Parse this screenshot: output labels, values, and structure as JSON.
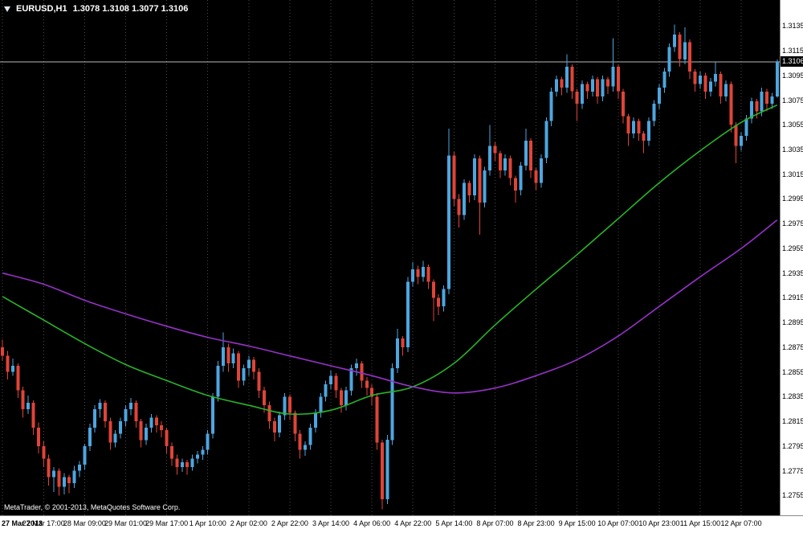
{
  "header": {
    "symbol": "EURUSD,H1",
    "ohlc": "1.3078 1.3108 1.3077 1.3106"
  },
  "footer": {
    "copyright": "MetaTrader, © 2001-2013, MetaQuotes Software Corp."
  },
  "colors": {
    "background": "#000000",
    "bull": "#4da6e0",
    "bear": "#e04438",
    "grid": "#4a4a4a",
    "last_price_line": "#b9b9b9",
    "axis_bg": "#ffffff",
    "axis_text": "#000000",
    "header_text": "#ffffff"
  },
  "chart_data": {
    "type": "candlestick",
    "title": "EURUSD,H1",
    "symbol": "EURUSD",
    "timeframe": "H1",
    "current_bar": {
      "open": 1.3078,
      "high": 1.3108,
      "low": 1.3077,
      "close": 1.3106
    },
    "last_price": 1.3106,
    "last_price_label": "1.3106",
    "y_min": 1.2739,
    "y_max": 1.3156,
    "grid": "vertical-dotted",
    "y_ticks": [
      "1.3135",
      "1.3115",
      "1.3095",
      "1.3075",
      "1.3055",
      "1.3035",
      "1.3015",
      "1.2995",
      "1.2975",
      "1.2955",
      "1.2935",
      "1.2915",
      "1.2895",
      "1.2875",
      "1.2855",
      "1.2835",
      "1.2815",
      "1.2795",
      "1.2775",
      "1.2755"
    ],
    "x_ticks": [
      [
        0,
        "27 Mar 2013"
      ],
      [
        8,
        "27 Mar 17:00"
      ],
      [
        16,
        "28 Mar 09:00"
      ],
      [
        24,
        "29 Mar 01:00"
      ],
      [
        32,
        "29 Mar 17:00"
      ],
      [
        40,
        "1 Apr 10:00"
      ],
      [
        48,
        "2 Apr 02:00"
      ],
      [
        56,
        "2 Apr 22:00"
      ],
      [
        64,
        "3 Apr 14:00"
      ],
      [
        72,
        "4 Apr 06:00"
      ],
      [
        80,
        "4 Apr 22:00"
      ],
      [
        88,
        "5 Apr 14:00"
      ],
      [
        96,
        "8 Apr 07:00"
      ],
      [
        104,
        "8 Apr 23:00"
      ],
      [
        112,
        "9 Apr 15:00"
      ],
      [
        120,
        "10 Apr 07:00"
      ],
      [
        128,
        "10 Apr 23:00"
      ],
      [
        136,
        "11 Apr 15:00"
      ],
      [
        144,
        "12 Apr 07:00"
      ]
    ],
    "candles": [
      [
        1.2875,
        1.2881,
        1.2864,
        1.2868
      ],
      [
        1.2868,
        1.2872,
        1.2849,
        1.2855
      ],
      [
        1.2855,
        1.2866,
        1.2852,
        1.286
      ],
      [
        1.286,
        1.2862,
        1.2834,
        1.284
      ],
      [
        1.284,
        1.2843,
        1.2818,
        1.2825
      ],
      [
        1.2825,
        1.2836,
        1.2821,
        1.283
      ],
      [
        1.283,
        1.2832,
        1.2804,
        1.281
      ],
      [
        1.281,
        1.2814,
        1.2789,
        1.2795
      ],
      [
        1.2795,
        1.2799,
        1.2778,
        1.2785
      ],
      [
        1.2785,
        1.2788,
        1.2763,
        1.277
      ],
      [
        1.277,
        1.2778,
        1.2758,
        1.2775
      ],
      [
        1.2775,
        1.2777,
        1.2755,
        1.2762
      ],
      [
        1.2762,
        1.2773,
        1.2756,
        1.277
      ],
      [
        1.277,
        1.2772,
        1.2757,
        1.2765
      ],
      [
        1.2765,
        1.2779,
        1.2761,
        1.2775
      ],
      [
        1.2775,
        1.2783,
        1.277,
        1.278
      ],
      [
        1.278,
        1.2797,
        1.2776,
        1.2795
      ],
      [
        1.2795,
        1.2813,
        1.2791,
        1.281
      ],
      [
        1.281,
        1.2828,
        1.2806,
        1.2825
      ],
      [
        1.2825,
        1.2833,
        1.2818,
        1.283
      ],
      [
        1.283,
        1.2832,
        1.281,
        1.2815
      ],
      [
        1.2815,
        1.2818,
        1.2792,
        1.2798
      ],
      [
        1.2798,
        1.2808,
        1.2794,
        1.2805
      ],
      [
        1.2805,
        1.2818,
        1.2801,
        1.2815
      ],
      [
        1.2815,
        1.2828,
        1.2811,
        1.2825
      ],
      [
        1.2825,
        1.2834,
        1.282,
        1.283
      ],
      [
        1.283,
        1.2832,
        1.281,
        1.2815
      ],
      [
        1.2815,
        1.2817,
        1.2794,
        1.28
      ],
      [
        1.28,
        1.2813,
        1.2796,
        1.281
      ],
      [
        1.281,
        1.2821,
        1.2806,
        1.2818
      ],
      [
        1.2818,
        1.282,
        1.2806,
        1.2812
      ],
      [
        1.2812,
        1.2815,
        1.2802,
        1.2808
      ],
      [
        1.2808,
        1.281,
        1.2789,
        1.2795
      ],
      [
        1.2795,
        1.2798,
        1.2779,
        1.2785
      ],
      [
        1.2785,
        1.2788,
        1.2772,
        1.2778
      ],
      [
        1.2778,
        1.2785,
        1.2774,
        1.2782
      ],
      [
        1.2782,
        1.2784,
        1.2772,
        1.2778
      ],
      [
        1.2778,
        1.2788,
        1.2775,
        1.2785
      ],
      [
        1.2785,
        1.2791,
        1.2781,
        1.2788
      ],
      [
        1.2788,
        1.2795,
        1.2784,
        1.2792
      ],
      [
        1.2792,
        1.2808,
        1.2788,
        1.2805
      ],
      [
        1.2805,
        1.2838,
        1.2801,
        1.2835
      ],
      [
        1.2835,
        1.2864,
        1.2831,
        1.286
      ],
      [
        1.286,
        1.2887,
        1.2855,
        1.2875
      ],
      [
        1.2875,
        1.2878,
        1.2855,
        1.2862
      ],
      [
        1.2862,
        1.2874,
        1.2858,
        1.287
      ],
      [
        1.287,
        1.2872,
        1.2842,
        1.2848
      ],
      [
        1.2848,
        1.2861,
        1.2844,
        1.2858
      ],
      [
        1.2858,
        1.2868,
        1.2852,
        1.2865
      ],
      [
        1.2865,
        1.2867,
        1.2849,
        1.2855
      ],
      [
        1.2855,
        1.2858,
        1.2834,
        1.284
      ],
      [
        1.284,
        1.2843,
        1.2822,
        1.2828
      ],
      [
        1.2828,
        1.2831,
        1.2809,
        1.2815
      ],
      [
        1.2815,
        1.2818,
        1.2799,
        1.2806
      ],
      [
        1.2806,
        1.2823,
        1.2802,
        1.282
      ],
      [
        1.282,
        1.2838,
        1.2816,
        1.2835
      ],
      [
        1.2835,
        1.2837,
        1.2816,
        1.2822
      ],
      [
        1.2822,
        1.2824,
        1.2799,
        1.2805
      ],
      [
        1.2805,
        1.2808,
        1.2785,
        1.2792
      ],
      [
        1.2792,
        1.2799,
        1.2787,
        1.2796
      ],
      [
        1.2796,
        1.2813,
        1.2792,
        1.281
      ],
      [
        1.281,
        1.2825,
        1.2806,
        1.2822
      ],
      [
        1.2822,
        1.2838,
        1.2818,
        1.2835
      ],
      [
        1.2835,
        1.2848,
        1.2831,
        1.2845
      ],
      [
        1.2845,
        1.2856,
        1.2841,
        1.2852
      ],
      [
        1.2852,
        1.2854,
        1.2834,
        1.284
      ],
      [
        1.284,
        1.2842,
        1.2822,
        1.2828
      ],
      [
        1.2828,
        1.2843,
        1.2824,
        1.284
      ],
      [
        1.284,
        1.2861,
        1.2836,
        1.2858
      ],
      [
        1.2858,
        1.2866,
        1.2852,
        1.2862
      ],
      [
        1.2862,
        1.2864,
        1.2842,
        1.2848
      ],
      [
        1.2848,
        1.2851,
        1.2836,
        1.2842
      ],
      [
        1.2842,
        1.2845,
        1.2828,
        1.2835
      ],
      [
        1.2835,
        1.2838,
        1.2792,
        1.2798
      ],
      [
        1.2798,
        1.28,
        1.2744,
        1.2752
      ],
      [
        1.2752,
        1.2804,
        1.2748,
        1.28
      ],
      [
        1.28,
        1.2862,
        1.2796,
        1.2858
      ],
      [
        1.2858,
        1.289,
        1.2854,
        1.2882
      ],
      [
        1.2882,
        1.2884,
        1.2868,
        1.2875
      ],
      [
        1.2875,
        1.2932,
        1.2871,
        1.2928
      ],
      [
        1.2928,
        1.2944,
        1.2924,
        1.2938
      ],
      [
        1.2938,
        1.2941,
        1.2926,
        1.2932
      ],
      [
        1.2932,
        1.2945,
        1.2928,
        1.294
      ],
      [
        1.294,
        1.2942,
        1.2922,
        1.2928
      ],
      [
        1.2928,
        1.293,
        1.2896,
        1.2915
      ],
      [
        1.2915,
        1.2918,
        1.2901,
        1.2908
      ],
      [
        1.2908,
        1.2925,
        1.2904,
        1.2922
      ],
      [
        1.2922,
        1.3052,
        1.2918,
        1.303
      ],
      [
        1.303,
        1.3033,
        1.2989,
        1.2995
      ],
      [
        1.2995,
        1.2999,
        1.2972,
        1.2982
      ],
      [
        1.2982,
        1.3011,
        1.2978,
        1.3008
      ],
      [
        1.3008,
        1.301,
        1.2992,
        1.2998
      ],
      [
        1.2998,
        1.3031,
        1.2994,
        1.3028
      ],
      [
        1.3028,
        1.303,
        1.2966,
        1.2992
      ],
      [
        1.2992,
        1.3021,
        1.2988,
        1.3018
      ],
      [
        1.3018,
        1.3055,
        1.3014,
        1.3038
      ],
      [
        1.3038,
        1.3041,
        1.3026,
        1.3032
      ],
      [
        1.3032,
        1.3034,
        1.3012,
        1.3018
      ],
      [
        1.3018,
        1.3031,
        1.3014,
        1.3028
      ],
      [
        1.3028,
        1.303,
        1.3006,
        1.3012
      ],
      [
        1.3012,
        1.3014,
        1.2992,
        1.3002
      ],
      [
        1.3002,
        1.3025,
        1.2998,
        1.3022
      ],
      [
        1.3022,
        1.3052,
        1.3018,
        1.3042
      ],
      [
        1.3042,
        1.3044,
        1.3012,
        1.3018
      ],
      [
        1.3018,
        1.302,
        1.3002,
        1.3008
      ],
      [
        1.3008,
        1.3031,
        1.3004,
        1.3028
      ],
      [
        1.3028,
        1.3061,
        1.3024,
        1.3058
      ],
      [
        1.3058,
        1.3085,
        1.3054,
        1.3082
      ],
      [
        1.3082,
        1.3095,
        1.3078,
        1.3092
      ],
      [
        1.3092,
        1.3094,
        1.3079,
        1.3085
      ],
      [
        1.3085,
        1.3112,
        1.3081,
        1.3102
      ],
      [
        1.3102,
        1.3104,
        1.3076,
        1.3082
      ],
      [
        1.3082,
        1.3084,
        1.3058,
        1.3072
      ],
      [
        1.3072,
        1.3091,
        1.3068,
        1.3088
      ],
      [
        1.3088,
        1.309,
        1.3076,
        1.3082
      ],
      [
        1.3082,
        1.3095,
        1.3078,
        1.3092
      ],
      [
        1.3092,
        1.3094,
        1.3072,
        1.3078
      ],
      [
        1.3078,
        1.3095,
        1.3074,
        1.3092
      ],
      [
        1.3092,
        1.3094,
        1.308,
        1.3086
      ],
      [
        1.3086,
        1.3125,
        1.3082,
        1.3102
      ],
      [
        1.3102,
        1.3104,
        1.3076,
        1.3082
      ],
      [
        1.3082,
        1.3084,
        1.3056,
        1.3062
      ],
      [
        1.3062,
        1.3064,
        1.3038,
        1.3048
      ],
      [
        1.3048,
        1.3061,
        1.3044,
        1.3058
      ],
      [
        1.3058,
        1.306,
        1.3042,
        1.3048
      ],
      [
        1.3048,
        1.305,
        1.3032,
        1.3042
      ],
      [
        1.3042,
        1.3061,
        1.3038,
        1.3058
      ],
      [
        1.3058,
        1.3075,
        1.3054,
        1.3072
      ],
      [
        1.3072,
        1.3088,
        1.3068,
        1.3085
      ],
      [
        1.3085,
        1.3101,
        1.3081,
        1.3098
      ],
      [
        1.3098,
        1.3121,
        1.3094,
        1.3118
      ],
      [
        1.3118,
        1.3136,
        1.3114,
        1.3128
      ],
      [
        1.3128,
        1.313,
        1.3102,
        1.3108
      ],
      [
        1.3108,
        1.3134,
        1.3104,
        1.3122
      ],
      [
        1.3122,
        1.3124,
        1.3092,
        1.3098
      ],
      [
        1.3098,
        1.31,
        1.3082,
        1.3088
      ],
      [
        1.3088,
        1.3098,
        1.3084,
        1.3095
      ],
      [
        1.3095,
        1.3097,
        1.3076,
        1.3082
      ],
      [
        1.3082,
        1.3093,
        1.3078,
        1.309
      ],
      [
        1.309,
        1.3106,
        1.3086,
        1.3096
      ],
      [
        1.3096,
        1.3098,
        1.3072,
        1.3078
      ],
      [
        1.3078,
        1.3091,
        1.3074,
        1.3088
      ],
      [
        1.3088,
        1.309,
        1.3049,
        1.3055
      ],
      [
        1.3055,
        1.3057,
        1.3024,
        1.3038
      ],
      [
        1.3038,
        1.3049,
        1.3034,
        1.3046
      ],
      [
        1.3046,
        1.3063,
        1.3042,
        1.306
      ],
      [
        1.306,
        1.3077,
        1.3056,
        1.3074
      ],
      [
        1.3074,
        1.3076,
        1.306,
        1.3066
      ],
      [
        1.3066,
        1.3085,
        1.3062,
        1.3082
      ],
      [
        1.3082,
        1.3084,
        1.3066,
        1.3072
      ],
      [
        1.3072,
        1.3081,
        1.3068,
        1.3078
      ],
      [
        1.3078,
        1.3108,
        1.3077,
        1.3106
      ]
    ],
    "ma_fast": {
      "name": "moving-average-fast",
      "color": "#28b428",
      "points": [
        [
          0,
          1.2916
        ],
        [
          8,
          1.2897
        ],
        [
          16,
          1.2878
        ],
        [
          24,
          1.2861
        ],
        [
          32,
          1.2848
        ],
        [
          40,
          1.2836
        ],
        [
          48,
          1.2828
        ],
        [
          56,
          1.2821
        ],
        [
          64,
          1.2824
        ],
        [
          72,
          1.2836
        ],
        [
          80,
          1.2843
        ],
        [
          88,
          1.2862
        ],
        [
          96,
          1.2893
        ],
        [
          104,
          1.2922
        ],
        [
          112,
          1.295
        ],
        [
          120,
          1.2979
        ],
        [
          128,
          1.3008
        ],
        [
          136,
          1.3034
        ],
        [
          144,
          1.3057
        ],
        [
          151,
          1.3071
        ]
      ]
    },
    "ma_slow": {
      "name": "moving-average-slow",
      "color": "#9632c8",
      "points": [
        [
          0,
          1.2935
        ],
        [
          8,
          1.2926
        ],
        [
          16,
          1.2913
        ],
        [
          24,
          1.2902
        ],
        [
          32,
          1.2892
        ],
        [
          40,
          1.2883
        ],
        [
          48,
          1.2876
        ],
        [
          56,
          1.2868
        ],
        [
          64,
          1.286
        ],
        [
          72,
          1.2852
        ],
        [
          80,
          1.2843
        ],
        [
          88,
          1.2838
        ],
        [
          96,
          1.2842
        ],
        [
          104,
          1.2852
        ],
        [
          112,
          1.2865
        ],
        [
          120,
          1.2884
        ],
        [
          128,
          1.2908
        ],
        [
          136,
          1.2932
        ],
        [
          144,
          1.2955
        ],
        [
          151,
          1.2978
        ]
      ]
    }
  }
}
